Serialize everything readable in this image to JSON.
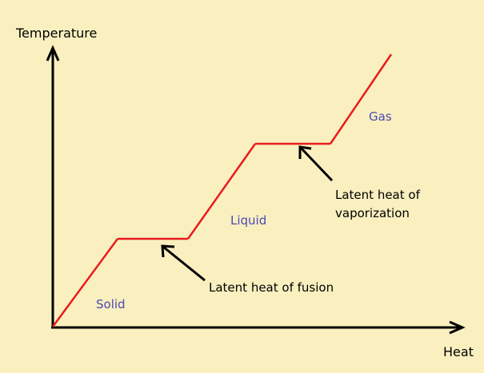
{
  "axes": {
    "x_label": "Heat",
    "y_label": "Temperature"
  },
  "phases": {
    "solid": "Solid",
    "liquid": "Liquid",
    "gas": "Gas"
  },
  "annotations": {
    "fusion": "Latent heat of fusion",
    "vaporization_line1": "Latent heat of",
    "vaporization_line2": "vaporization"
  },
  "colors": {
    "background": "#f9efbf",
    "curve": "#e81c1c",
    "phase_text": "#4a4ab5",
    "axis": "#000000"
  }
}
